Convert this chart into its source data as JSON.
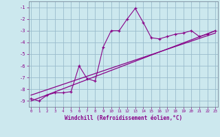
{
  "xlabel": "Windchill (Refroidissement éolien,°C)",
  "bg_color": "#cce8ee",
  "grid_color": "#99bbcc",
  "line_color": "#880088",
  "x_data": [
    0,
    1,
    2,
    3,
    4,
    5,
    6,
    7,
    8,
    9,
    10,
    11,
    12,
    13,
    14,
    15,
    16,
    17,
    18,
    19,
    20,
    21,
    22,
    23
  ],
  "scatter_y": [
    -8.8,
    -9.0,
    -8.5,
    -8.3,
    -8.3,
    -8.2,
    -6.0,
    -7.1,
    -7.3,
    -4.4,
    -3.0,
    -3.0,
    -2.0,
    -1.1,
    -2.3,
    -3.6,
    -3.7,
    -3.5,
    -3.3,
    -3.2,
    -3.0,
    -3.5,
    -3.3,
    -3.0
  ],
  "line1_x": [
    0,
    23
  ],
  "line1_y": [
    -9.0,
    -3.0
  ],
  "line2_x": [
    0,
    23
  ],
  "line2_y": [
    -8.5,
    -3.2
  ],
  "ylim": [
    -9.5,
    -0.5
  ],
  "xlim": [
    -0.3,
    23.3
  ],
  "yticks": [
    -9,
    -8,
    -7,
    -6,
    -5,
    -4,
    -3,
    -2,
    -1
  ],
  "xticks": [
    0,
    1,
    2,
    3,
    4,
    5,
    6,
    7,
    8,
    9,
    10,
    11,
    12,
    13,
    14,
    15,
    16,
    17,
    18,
    19,
    20,
    21,
    22,
    23
  ]
}
